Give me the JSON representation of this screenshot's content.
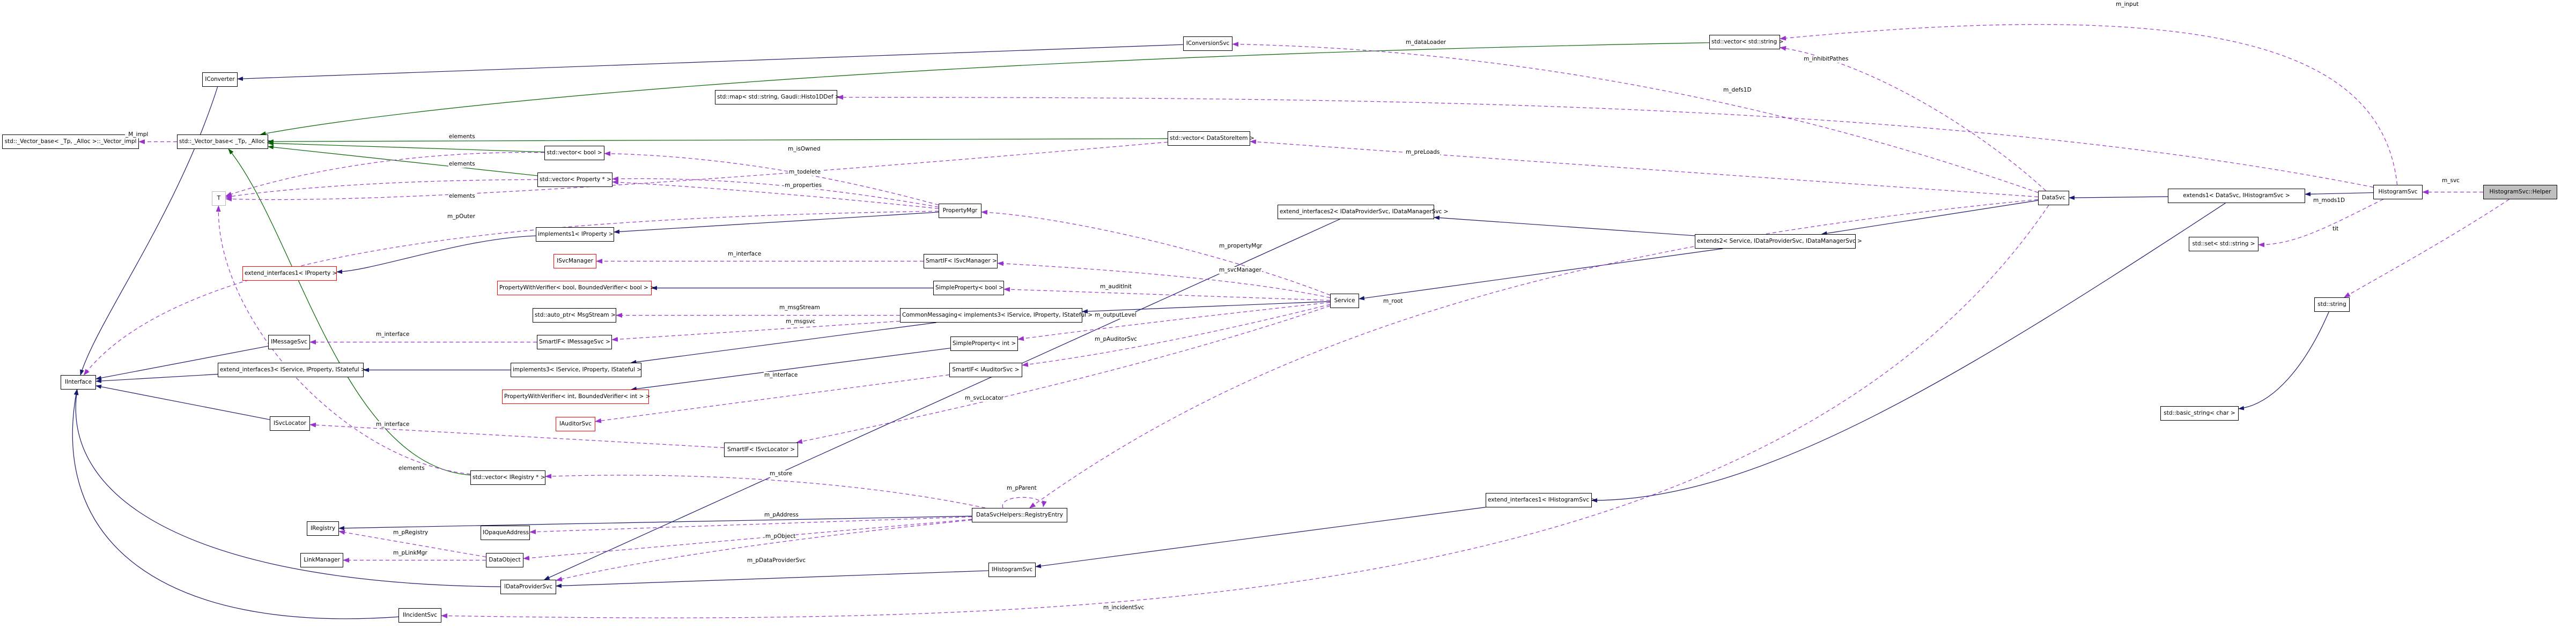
{
  "diagram_type": "doxygen-collaboration-graph",
  "target_class": "HistogramSvc::Helper",
  "colors": {
    "inherit_edge": "#191970",
    "private_inherit_edge": "#006400",
    "usage_edge": "#9a32cd",
    "node_border": "#000000",
    "truncated_node_border": "#ff0000",
    "template_node_border": "#b9b9b9",
    "target_node_fill": "#bfbfbf",
    "node_fill": "#ffffff"
  },
  "nodes": [
    {
      "id": "vecimpl",
      "label": "std::_Vector_base< _Tp, _Alloc >::_Vector_impl",
      "border": "black"
    },
    {
      "id": "vecbase",
      "label": "std::_Vector_base< _Tp, _Alloc >",
      "border": "black"
    },
    {
      "id": "iconverter",
      "label": "IConverter",
      "border": "black"
    },
    {
      "id": "tbox",
      "label": "T",
      "border": "gray"
    },
    {
      "id": "iinterface",
      "label": "IInterface",
      "border": "black"
    },
    {
      "id": "extif1prop",
      "label": "extend_interfaces1< IProperty >",
      "border": "red"
    },
    {
      "id": "imessagesvc",
      "label": "IMessageSvc",
      "border": "black"
    },
    {
      "id": "extif3",
      "label": "extend_interfaces3< IService, IProperty, IStateful >",
      "border": "black"
    },
    {
      "id": "isvclocator",
      "label": "ISvcLocator",
      "border": "black"
    },
    {
      "id": "iregistry",
      "label": "IRegistry",
      "border": "black"
    },
    {
      "id": "linkmanager",
      "label": "LinkManager",
      "border": "black"
    },
    {
      "id": "iincidentsvc",
      "label": "IIncidentSvc",
      "border": "black"
    },
    {
      "id": "mapbox",
      "label": "std::map< std::string, Gaudi::Histo1DDef >",
      "border": "black"
    },
    {
      "id": "vecbool",
      "label": "std::vector< bool >",
      "border": "black"
    },
    {
      "id": "vecprop",
      "label": "std::vector< Property * >",
      "border": "black"
    },
    {
      "id": "impl1",
      "label": "implements1< IProperty >",
      "border": "black"
    },
    {
      "id": "isvcmanager",
      "label": "ISvcManager",
      "border": "red"
    },
    {
      "id": "pwvbool",
      "label": "PropertyWithVerifier< bool, BoundedVerifier< bool > >",
      "border": "red"
    },
    {
      "id": "autoptr",
      "label": "std::auto_ptr< MsgStream >",
      "border": "black"
    },
    {
      "id": "smartifmsg",
      "label": "SmartIF< IMessageSvc >",
      "border": "black"
    },
    {
      "id": "impl3",
      "label": "implements3< IService, IProperty, IStateful >",
      "border": "black"
    },
    {
      "id": "pwvint",
      "label": "PropertyWithVerifier< int, BoundedVerifier< int > >",
      "border": "red"
    },
    {
      "id": "iauditorsvc",
      "label": "IAuditorSvc",
      "border": "red"
    },
    {
      "id": "vecireg",
      "label": "std::vector< IRegistry * >",
      "border": "black"
    },
    {
      "id": "iopaque",
      "label": "IOpaqueAddress",
      "border": "black"
    },
    {
      "id": "dataobject",
      "label": "DataObject",
      "border": "black"
    },
    {
      "id": "idataprovider",
      "label": "IDataProviderSvc",
      "border": "black"
    },
    {
      "id": "vecdsi",
      "label": "std::vector< DataStoreItem >",
      "border": "black"
    },
    {
      "id": "iconversionsvc",
      "label": "IConversionSvc",
      "border": "black"
    },
    {
      "id": "propertymgr",
      "label": "PropertyMgr",
      "border": "black"
    },
    {
      "id": "smartifsvcmgr",
      "label": "SmartIF< ISvcManager >",
      "border": "black"
    },
    {
      "id": "simppropbool",
      "label": "SimpleProperty< bool >",
      "border": "black"
    },
    {
      "id": "commonmsg",
      "label": "CommonMessaging< implements3< IService, IProperty, IStateful > >",
      "border": "black"
    },
    {
      "id": "simppropint",
      "label": "SimpleProperty< int >",
      "border": "black"
    },
    {
      "id": "smartifaud",
      "label": "SmartIF< IAuditorSvc >",
      "border": "black"
    },
    {
      "id": "smartifsvcloc",
      "label": "SmartIF< ISvcLocator >",
      "border": "black"
    },
    {
      "id": "service",
      "label": "Service",
      "border": "black"
    },
    {
      "id": "registryentry",
      "label": "DataSvcHelpers::RegistryEntry",
      "border": "black"
    },
    {
      "id": "ihistogramsvc",
      "label": "IHistogramSvc",
      "border": "black"
    },
    {
      "id": "extif2",
      "label": "extend_interfaces2< IDataProviderSvc, IDataManagerSvc >",
      "border": "black"
    },
    {
      "id": "extends2",
      "label": "extends2< Service, IDataProviderSvc, IDataManagerSvc >",
      "border": "black"
    },
    {
      "id": "datasvc",
      "label": "DataSvc",
      "border": "black"
    },
    {
      "id": "extends1",
      "label": "extends1< DataSvc, IHistogramSvc >",
      "border": "black"
    },
    {
      "id": "setbox",
      "label": "std::set< std::string >",
      "border": "black"
    },
    {
      "id": "histogramsvc",
      "label": "HistogramSvc",
      "border": "black"
    },
    {
      "id": "helper",
      "label": "HistogramSvc::Helper",
      "border": "black",
      "fill": "gray"
    },
    {
      "id": "extif1hist",
      "label": "extend_interfaces1< IHistogramSvc >",
      "border": "black"
    },
    {
      "id": "stdstring",
      "label": "std::string",
      "border": "black"
    },
    {
      "id": "basicstring",
      "label": "std::basic_string< char >",
      "border": "black"
    }
  ],
  "edges": [
    {
      "from": "iconversionsvc",
      "to": "iconverter",
      "kind": "inherit"
    },
    {
      "from": "propertymgr",
      "to": "impl1",
      "kind": "inherit"
    },
    {
      "from": "impl1",
      "to": "extif1prop",
      "kind": "inherit"
    },
    {
      "from": "iconverter",
      "to": "iinterface",
      "kind": "inherit"
    },
    {
      "from": "imessagesvc",
      "to": "iinterface",
      "kind": "inherit"
    },
    {
      "from": "isvclocator",
      "to": "iinterface",
      "kind": "inherit"
    },
    {
      "from": "extif3",
      "to": "iinterface",
      "kind": "inherit"
    },
    {
      "from": "idataprovider",
      "to": "iinterface",
      "kind": "inherit"
    },
    {
      "from": "iincidentsvc",
      "to": "iinterface",
      "kind": "inherit"
    },
    {
      "from": "registryentry",
      "to": "iregistry",
      "kind": "inherit"
    },
    {
      "from": "commonmsg",
      "to": "impl3",
      "kind": "inherit"
    },
    {
      "from": "impl3",
      "to": "extif3",
      "kind": "inherit"
    },
    {
      "from": "service",
      "to": "commonmsg",
      "kind": "inherit"
    },
    {
      "from": "extends2",
      "to": "service",
      "kind": "inherit"
    },
    {
      "from": "extends2",
      "to": "extif2",
      "kind": "inherit"
    },
    {
      "from": "datasvc",
      "to": "extends2",
      "kind": "inherit"
    },
    {
      "from": "extends1",
      "to": "datasvc",
      "kind": "inherit"
    },
    {
      "from": "extends1",
      "to": "extif1hist",
      "kind": "inherit"
    },
    {
      "from": "extif1hist",
      "to": "ihistogramsvc",
      "kind": "inherit"
    },
    {
      "from": "histogramsvc",
      "to": "extends1",
      "kind": "inherit"
    },
    {
      "from": "simppropbool",
      "to": "pwvbool",
      "kind": "inherit"
    },
    {
      "from": "simppropint",
      "to": "pwvint",
      "kind": "inherit"
    },
    {
      "from": "stdstring",
      "to": "basicstring",
      "kind": "inherit"
    },
    {
      "from": "extif2",
      "to": "idataprovider",
      "kind": "inherit"
    },
    {
      "from": "ihistogramsvc",
      "to": "idataprovider",
      "kind": "inherit"
    },
    {
      "from": "vecbool",
      "to": "vecbase",
      "kind": "private"
    },
    {
      "from": "vecprop",
      "to": "vecbase",
      "kind": "private"
    },
    {
      "from": "vecdsi",
      "to": "vecbase",
      "kind": "private"
    },
    {
      "from": "vecstring",
      "to": "vecbase",
      "kind": "private"
    },
    {
      "from": "vecireg",
      "to": "vecbase",
      "kind": "private"
    },
    {
      "from": "vecbase",
      "to": "vecimpl",
      "kind": "use",
      "label": "_M_impl"
    },
    {
      "from": "vecbool",
      "to": "tbox",
      "kind": "use",
      "label": "elements"
    },
    {
      "from": "vecprop",
      "to": "tbox",
      "kind": "use",
      "label": "elements"
    },
    {
      "from": "vecdsi",
      "to": "tbox",
      "kind": "use",
      "label": "elements"
    },
    {
      "from": "vecireg",
      "to": "tbox",
      "kind": "use",
      "label": "elements"
    },
    {
      "from": "propertymgr",
      "to": "vecbool",
      "kind": "use",
      "label": "m_isOwned"
    },
    {
      "from": "propertymgr",
      "to": "vecprop",
      "kind": "use",
      "label": "m_todelete"
    },
    {
      "from": "propertymgr",
      "to": "vecprop",
      "kind": "use",
      "label": "m_properties"
    },
    {
      "from": "propertymgr",
      "to": "iinterface",
      "kind": "use",
      "label": "m_pOuter"
    },
    {
      "from": "service",
      "to": "propertymgr",
      "kind": "use",
      "label": "m_propertyMgr"
    },
    {
      "from": "service",
      "to": "smartifsvcmgr",
      "kind": "use",
      "label": "m_svcManager"
    },
    {
      "from": "service",
      "to": "simppropbool",
      "kind": "use",
      "label": "m_auditInit"
    },
    {
      "from": "service",
      "to": "simppropint",
      "kind": "use",
      "label": "m_outputLevel"
    },
    {
      "from": "service",
      "to": "smartifaud",
      "kind": "use",
      "label": "m_pAuditorSvc"
    },
    {
      "from": "service",
      "to": "smartifsvcloc",
      "kind": "use",
      "label": "m_svcLocator"
    },
    {
      "from": "smartifsvcmgr",
      "to": "isvcmanager",
      "kind": "use",
      "label": "m_interface"
    },
    {
      "from": "smartifmsg",
      "to": "imessagesvc",
      "kind": "use",
      "label": "m_interface"
    },
    {
      "from": "smartifsvcloc",
      "to": "isvclocator",
      "kind": "use",
      "label": "m_interface"
    },
    {
      "from": "smartifaud",
      "to": "iauditorsvc",
      "kind": "use",
      "label": "m_interface"
    },
    {
      "from": "commonmsg",
      "to": "autoptr",
      "kind": "use",
      "label": "m_msgStream"
    },
    {
      "from": "commonmsg",
      "to": "smartifmsg",
      "kind": "use",
      "label": "m_msgsvc"
    },
    {
      "from": "datasvc",
      "to": "iconversionsvc",
      "kind": "use",
      "label": "m_dataLoader"
    },
    {
      "from": "datasvc",
      "to": "vecstring",
      "kind": "use",
      "label": "m_inhibitPathes"
    },
    {
      "from": "datasvc",
      "to": "vecdsi",
      "kind": "use",
      "label": "m_preLoads"
    },
    {
      "from": "datasvc",
      "to": "registryentry",
      "kind": "use",
      "label": "m_root"
    },
    {
      "from": "datasvc",
      "to": "iincidentsvc",
      "kind": "use",
      "label": "m_incidentSvc"
    },
    {
      "from": "histogramsvc",
      "to": "mapbox",
      "kind": "use",
      "label": "m_defs1D"
    },
    {
      "from": "histogramsvc",
      "to": "vecstring",
      "kind": "use",
      "label": "m_input"
    },
    {
      "from": "histogramsvc",
      "to": "setbox",
      "kind": "use",
      "label": "m_mods1D"
    },
    {
      "from": "helper",
      "to": "histogramsvc",
      "kind": "use",
      "label": "m_svc"
    },
    {
      "from": "helper",
      "to": "stdstring",
      "kind": "use",
      "label": "tit"
    },
    {
      "from": "registryentry",
      "to": "vecireg",
      "kind": "use",
      "label": "m_store"
    },
    {
      "from": "registryentry",
      "to": "registryentry",
      "kind": "self",
      "label": "m_pParent"
    },
    {
      "from": "registryentry",
      "to": "iopaque",
      "kind": "use",
      "label": "m_pAddress"
    },
    {
      "from": "registryentry",
      "to": "dataobject",
      "kind": "use",
      "label": "m_pObject"
    },
    {
      "from": "registryentry",
      "to": "idataprovider",
      "kind": "use",
      "label": "m_pDataProviderSvc"
    },
    {
      "from": "dataobject",
      "to": "iregistry",
      "kind": "use",
      "label": "m_pRegistry"
    },
    {
      "from": "dataobject",
      "to": "linkmanager",
      "kind": "use",
      "label": "m_pLinkMgr"
    }
  ]
}
